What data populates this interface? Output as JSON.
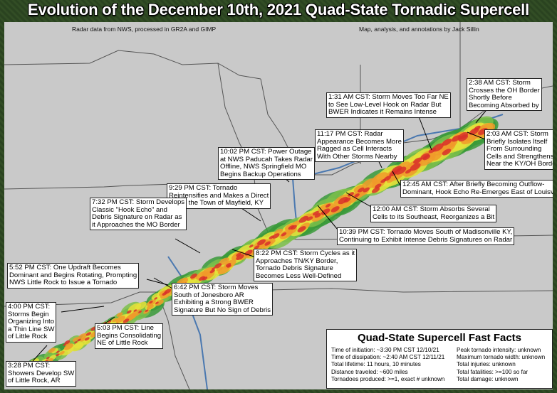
{
  "header": {
    "title": "Evolution of the December 10th, 2021 Quad-State Tornadic Supercell",
    "credit_left": "Radar data from NWS, processed in GR2A and GIMP",
    "credit_right": "Map, analysis, and annotations by Jack Sillin"
  },
  "annotations": [
    {
      "lines": [
        "2:38 AM CST: Storm",
        "Crosses the OH Border",
        "Shortly Before",
        "Becoming Absorbed by"
      ]
    },
    {
      "lines": [
        "1:31 AM CST: Storm Moves Too Far NE",
        "to See Low-Level Hook on Radar But",
        "BWER Indicates it Remains Intense"
      ]
    },
    {
      "lines": [
        "2:03 AM CST: Storm",
        "Briefly Isolates Itself",
        "From Surrounding",
        "Cells and Strengthens",
        "Near the KY/OH Border"
      ]
    },
    {
      "lines": [
        "11:17 PM CST: Radar",
        "Appearance Becomes More",
        "Ragged as Cell Interacts",
        "With Other Storms Nearby"
      ]
    },
    {
      "lines": [
        "10:02 PM CST: Power Outage",
        "at NWS Paducah Takes Radar",
        "Offline, NWS Springfield MO",
        "Begins Backup Operations"
      ]
    },
    {
      "lines": [
        "12:45 AM CST: After Briefly Becoming Outflow-",
        "Dominant, Hook Echo Re-Emerges East of Louisville"
      ]
    },
    {
      "lines": [
        "9:29 PM CST: Tornado",
        "Reintensifies and Makes a Direct",
        "Hit on the Town of Mayfield, KY"
      ]
    },
    {
      "lines": [
        "12:00 AM CST: Storm Absorbs Several",
        "Cells to its Southeast, Reorganizes a Bit"
      ]
    },
    {
      "lines": [
        "7:32 PM CST: Storm Develops",
        "Classic \"Hook Echo\" and",
        "Debris Signature on Radar as",
        "it Approaches the MO Border"
      ]
    },
    {
      "lines": [
        "10:39 PM CST: Tornado Moves South of Madisonville KY,",
        "Continuing to Exhibit Intense Debris Signatures on Radar"
      ]
    },
    {
      "lines": [
        "8:22 PM CST: Storm Cycles as it",
        "Approaches TN/KY Border,",
        "Tornado Debris Signature",
        "Becomes Less Well-Defined"
      ]
    },
    {
      "lines": [
        "5:52 PM CST: One Updraft Becomes",
        "Dominant and Begins Rotating, Prompting",
        "NWS Little Rock to Issue a Tornado"
      ]
    },
    {
      "lines": [
        "6:42 PM CST: Storm Moves",
        "South of Jonesboro AR",
        "Exhibiting a Strong BWER",
        "Signature But No Sign of Debris"
      ]
    },
    {
      "lines": [
        "4:00 PM CST:",
        "Storms Begin",
        "Organizing Into",
        "a Thin Line SW",
        "of Little Rock"
      ]
    },
    {
      "lines": [
        "5:03 PM CST: Line",
        "Begins Consolidating",
        "NE of Little Rock"
      ]
    },
    {
      "lines": [
        "3:28 PM CST:",
        "Showers Develop SW",
        "of Little Rock, AR"
      ]
    }
  ],
  "fast_facts": {
    "title": "Quad-State Supercell Fast Facts",
    "left": [
      "Time of initiation: ~3:30 PM CST 12/10/21",
      "Time of dissipation: ~2:40 AM CST 12/11/21",
      "Total lifetime: 11 hours, 10 minutes",
      "Distance traveled: ~600 miles",
      "Tornadoes produced: >=1, exact # unknown"
    ],
    "right": [
      "Peak tornado intensity: unknown",
      "Maximum tornado width: unknown",
      "Total injuries: unknown",
      "Total fatalities: >=100 so far",
      "Total damage: unknown"
    ]
  }
}
